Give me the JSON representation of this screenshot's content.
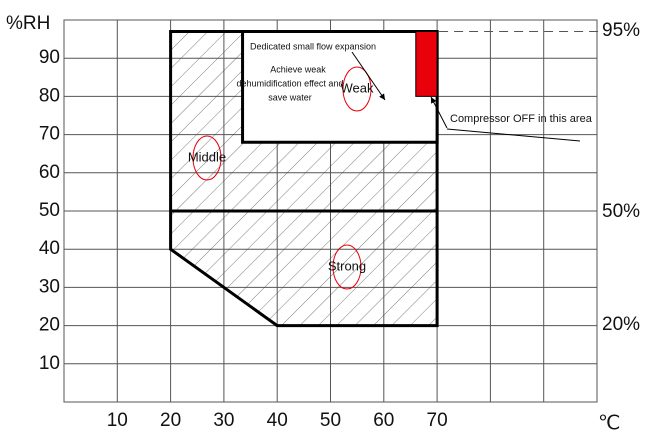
{
  "chart_data": {
    "type": "region",
    "y_label": "%RH",
    "x_label": "℃",
    "xlim": [
      0,
      100
    ],
    "ylim": [
      0,
      100
    ],
    "xticks": [
      10,
      20,
      30,
      40,
      50,
      60,
      70
    ],
    "yticks": [
      10,
      20,
      30,
      40,
      50,
      60,
      70,
      80,
      90
    ],
    "grid": true,
    "regions": [
      {
        "fill": "hatch",
        "points": [
          [
            20,
            97
          ],
          [
            70,
            97
          ],
          [
            70,
            20
          ],
          [
            40,
            20
          ],
          [
            20,
            40
          ]
        ]
      },
      {
        "fill": "#ffffff",
        "points": [
          [
            33.5,
            97
          ],
          [
            70,
            97
          ],
          [
            70,
            68
          ],
          [
            33.5,
            68
          ]
        ]
      },
      {
        "fill": "#e8000b",
        "points": [
          [
            66,
            97
          ],
          [
            70,
            97
          ],
          [
            70,
            80
          ],
          [
            66,
            80
          ]
        ]
      }
    ],
    "lines": [
      [
        [
          20,
          50
        ],
        [
          70,
          50
        ]
      ]
    ],
    "area_labels": [
      "Middle",
      "Weak",
      "Strong"
    ],
    "annotations": [
      "Dedicated small flow expansion",
      "Achieve weak",
      "dehumidification effect and",
      "save water",
      "Compressor OFF in this area"
    ],
    "right_labels": [
      "95%",
      "50%",
      "20%"
    ]
  }
}
